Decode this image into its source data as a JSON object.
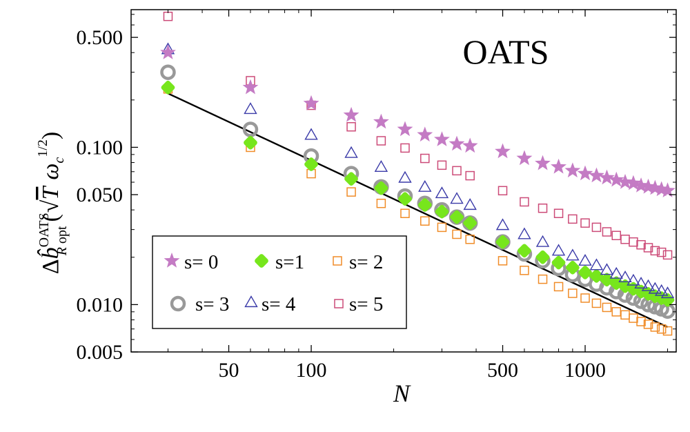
{
  "chart_data": {
    "type": "scatter",
    "scale": {
      "x": "log",
      "y": "log"
    },
    "xlim": [
      22,
      2150
    ],
    "ylim": [
      0.005,
      0.75
    ],
    "panel_label": "OATS",
    "xlabel": "N",
    "ylabel": {
      "delta": "Δ",
      "b": "b̂",
      "sup": "OATS",
      "sub_r": "R",
      "sub_opt": " opt",
      "open_paren": "(",
      "T": "T",
      "omega": "ω",
      "omega_sub": "c",
      "power": "1/2",
      "close_paren": ")"
    },
    "x_ticks": [
      50,
      100,
      500,
      1000
    ],
    "x_tick_labels": [
      "50",
      "100",
      "500",
      "1000"
    ],
    "y_ticks": [
      0.005,
      0.01,
      0.05,
      0.1,
      0.5
    ],
    "y_tick_labels": [
      "0.005",
      "0.010",
      "0.050",
      "0.100",
      "0.500"
    ],
    "x": [
      30,
      60,
      100,
      140,
      180,
      220,
      260,
      300,
      340,
      380,
      500,
      600,
      700,
      800,
      900,
      1000,
      1100,
      1200,
      1300,
      1400,
      1500,
      1600,
      1700,
      1800,
      1900,
      2000
    ],
    "series": [
      {
        "name": "s=0",
        "label": "s= 0",
        "marker": "star",
        "color": "#c47bc4",
        "values": [
          0.4,
          0.24,
          0.19,
          0.16,
          0.145,
          0.13,
          0.12,
          0.112,
          0.105,
          0.102,
          0.094,
          0.085,
          0.079,
          0.075,
          0.071,
          0.068,
          0.066,
          0.064,
          0.062,
          0.06,
          0.059,
          0.057,
          0.056,
          0.055,
          0.054,
          0.053
        ]
      },
      {
        "name": "s=1",
        "label": "s=1",
        "marker": "diamond",
        "color": "#77e61c",
        "values": [
          0.24,
          0.107,
          0.078,
          0.063,
          0.055,
          0.047,
          0.043,
          0.039,
          0.036,
          0.033,
          0.025,
          0.022,
          0.02,
          0.0185,
          0.0172,
          0.016,
          0.0152,
          0.0144,
          0.0137,
          0.0131,
          0.0126,
          0.0121,
          0.0117,
          0.0113,
          0.011,
          0.0107
        ]
      },
      {
        "name": "s=2",
        "label": "s= 2",
        "marker": "square",
        "color": "#f08c28",
        "values": [
          0.235,
          0.1,
          0.068,
          0.052,
          0.044,
          0.038,
          0.034,
          0.031,
          0.028,
          0.026,
          0.019,
          0.0165,
          0.0145,
          0.013,
          0.0118,
          0.011,
          0.0102,
          0.0096,
          0.009,
          0.0086,
          0.0082,
          0.0078,
          0.0075,
          0.0072,
          0.007,
          0.0068
        ]
      },
      {
        "name": "s=3",
        "label": "s= 3",
        "marker": "circle",
        "color": "#999999",
        "values": [
          0.3,
          0.13,
          0.088,
          0.068,
          0.056,
          0.049,
          0.044,
          0.04,
          0.036,
          0.033,
          0.025,
          0.021,
          0.019,
          0.017,
          0.0155,
          0.0145,
          0.0135,
          0.0128,
          0.0121,
          0.0115,
          0.011,
          0.0105,
          0.01,
          0.0097,
          0.0094,
          0.0091
        ]
      },
      {
        "name": "s=4",
        "label": "s= 4",
        "marker": "triangle",
        "color": "#3a3aa8",
        "values": [
          0.42,
          0.175,
          0.12,
          0.092,
          0.075,
          0.064,
          0.056,
          0.051,
          0.047,
          0.043,
          0.032,
          0.028,
          0.025,
          0.022,
          0.0205,
          0.019,
          0.0178,
          0.0166,
          0.0157,
          0.0149,
          0.0142,
          0.0136,
          0.0131,
          0.0126,
          0.0122,
          0.0118
        ]
      },
      {
        "name": "s=5",
        "label": "s= 5",
        "marker": "square",
        "color": "#cc4b78",
        "values": [
          0.68,
          0.265,
          0.185,
          0.135,
          0.11,
          0.099,
          0.085,
          0.077,
          0.071,
          0.066,
          0.053,
          0.045,
          0.041,
          0.038,
          0.035,
          0.033,
          0.031,
          0.029,
          0.0275,
          0.026,
          0.025,
          0.024,
          0.023,
          0.022,
          0.0215,
          0.0207
        ]
      }
    ],
    "fit_line": {
      "name": "reference-scaling-line",
      "color": "#000000",
      "x": [
        30,
        2000
      ],
      "y": [
        0.22,
        0.0072
      ]
    },
    "legend_position": "bottom-left"
  }
}
